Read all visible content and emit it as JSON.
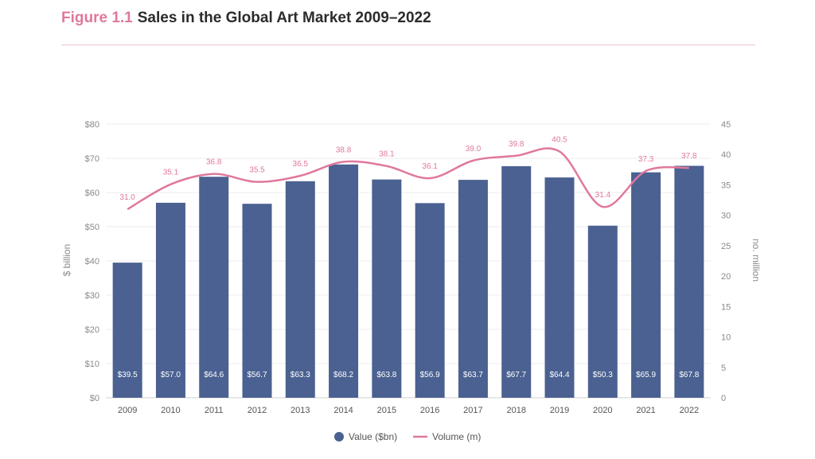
{
  "figure": {
    "label": "Figure 1.1",
    "title": "Sales in the Global Art Market 2009–2022"
  },
  "chart_data": {
    "type": "bar",
    "categories": [
      "2009",
      "2010",
      "2011",
      "2012",
      "2013",
      "2014",
      "2015",
      "2016",
      "2017",
      "2018",
      "2019",
      "2020",
      "2021",
      "2022"
    ],
    "series": [
      {
        "name": "Value ($bn)",
        "type": "bar",
        "axis": "left",
        "color": "#4a6191",
        "values": [
          39.5,
          57.0,
          64.6,
          56.7,
          63.3,
          68.2,
          63.8,
          56.9,
          63.7,
          67.7,
          64.4,
          50.3,
          65.9,
          67.8
        ],
        "labels": [
          "$39.5",
          "$57.0",
          "$64.6",
          "$56.7",
          "$63.3",
          "$68.2",
          "$63.8",
          "$56.9",
          "$63.7",
          "$67.7",
          "$64.4",
          "$50.3",
          "$65.9",
          "$67.8"
        ]
      },
      {
        "name": "Volume (m)",
        "type": "line",
        "axis": "right",
        "color": "#e0789c",
        "values": [
          31.0,
          35.1,
          36.8,
          35.5,
          36.5,
          38.8,
          38.1,
          36.1,
          39.0,
          39.8,
          40.5,
          31.4,
          37.3,
          37.8
        ],
        "labels": [
          "31.0",
          "35.1",
          "36.8",
          "35.5",
          "36.5",
          "38.8",
          "38.1",
          "36.1",
          "39.0",
          "39.8",
          "40.5",
          "31.4",
          "37.3",
          "37.8"
        ]
      }
    ],
    "y_left": {
      "label": "$ billion",
      "range": [
        0,
        80
      ],
      "ticks": [
        "$0",
        "$10",
        "$20",
        "$30",
        "$40",
        "$50",
        "$60",
        "$70",
        "$80"
      ]
    },
    "y_right": {
      "label": "no. million",
      "range": [
        0,
        45
      ],
      "ticks": [
        "0",
        "5",
        "10",
        "15",
        "20",
        "25",
        "30",
        "35",
        "40",
        "45"
      ]
    },
    "grid": true,
    "legend_position": "bottom-center"
  }
}
